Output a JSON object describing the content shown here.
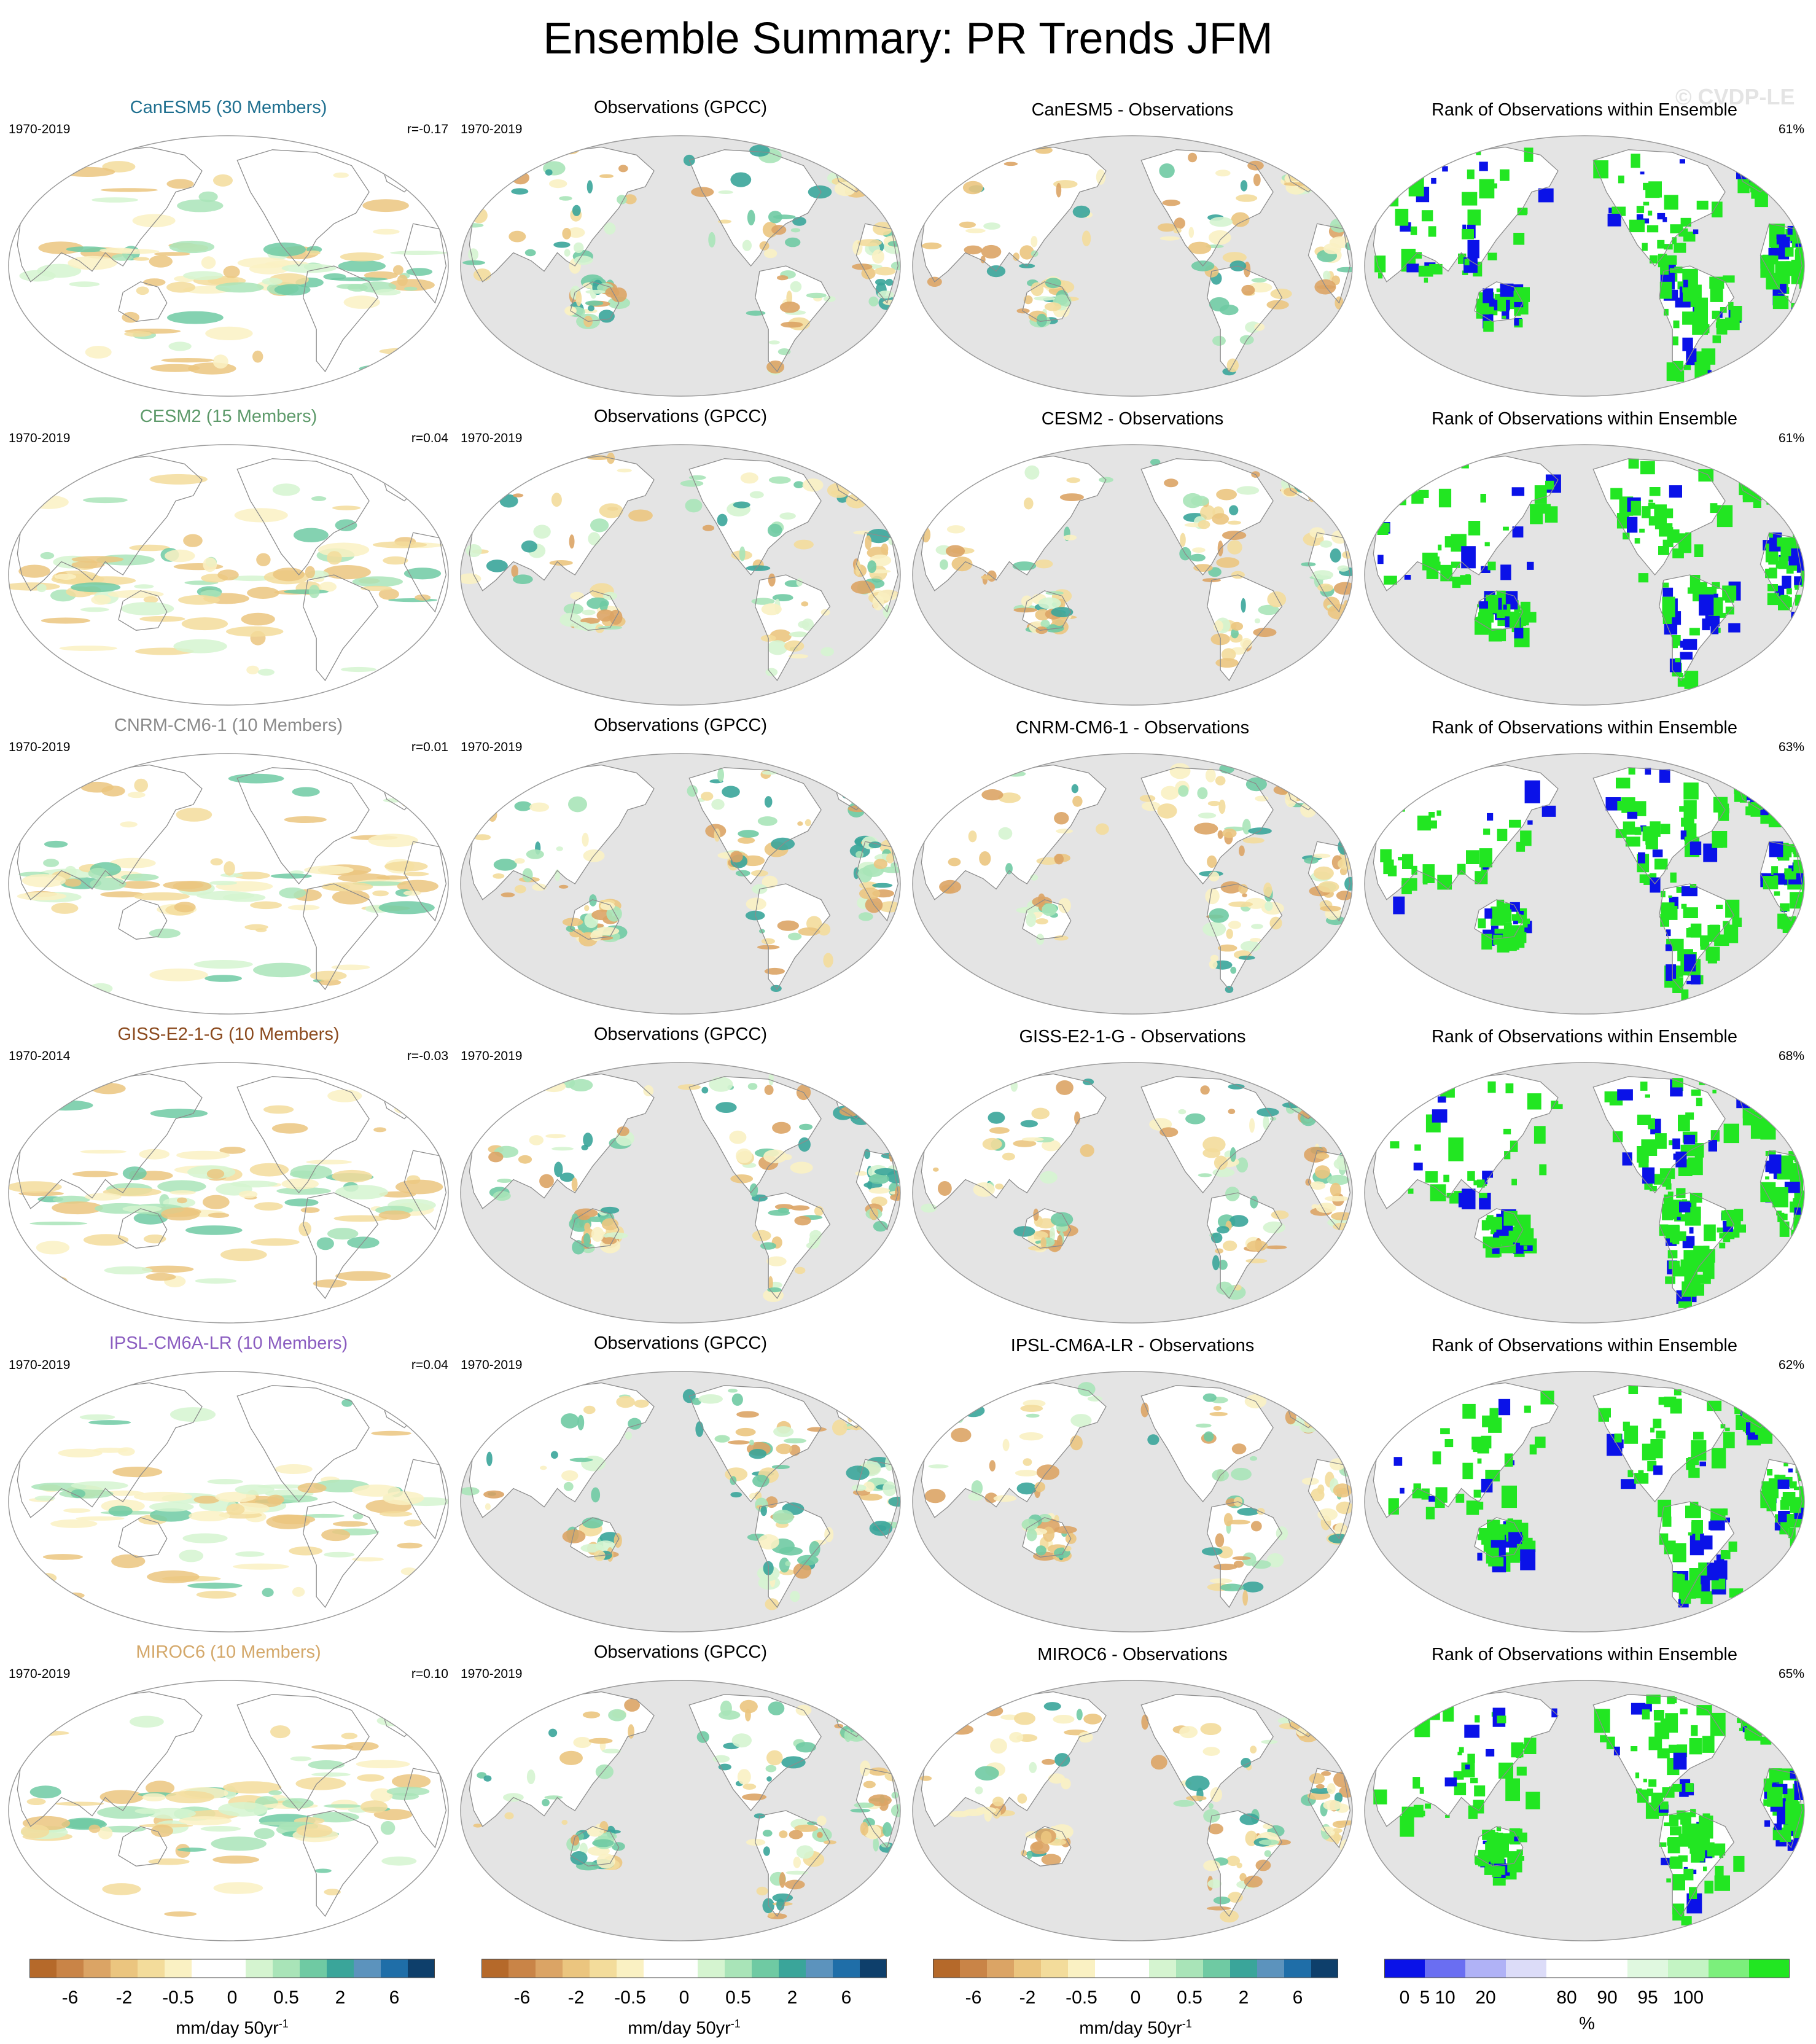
{
  "title": "Ensemble Summary: PR Trends JFM",
  "watermark": "© CVDP-LE",
  "rows": [
    {
      "model_title": "CanESM5 (30 Members)",
      "model_color": "#1e6f8f",
      "model_period": "1970-2019",
      "model_r": "r=-0.17",
      "obs_title": "Observations (GPCC)",
      "obs_period": "1970-2019",
      "diff_title": "CanESM5 - Observations",
      "rank_title": "Rank of Observations within Ensemble",
      "rank_pct": "61%"
    },
    {
      "model_title": "CESM2 (15 Members)",
      "model_color": "#5d9a6a",
      "model_period": "1970-2019",
      "model_r": "r=0.04",
      "obs_title": "Observations (GPCC)",
      "obs_period": "1970-2019",
      "diff_title": "CESM2 - Observations",
      "rank_title": "Rank of Observations within Ensemble",
      "rank_pct": "61%"
    },
    {
      "model_title": "CNRM-CM6-1 (10 Members)",
      "model_color": "#8a8a8a",
      "model_period": "1970-2019",
      "model_r": "r=0.01",
      "obs_title": "Observations (GPCC)",
      "obs_period": "1970-2019",
      "diff_title": "CNRM-CM6-1 - Observations",
      "rank_title": "Rank of Observations within Ensemble",
      "rank_pct": "63%"
    },
    {
      "model_title": "GISS-E2-1-G (10 Members)",
      "model_color": "#8b4a1e",
      "model_period": "1970-2014",
      "model_r": "r=-0.03",
      "obs_title": "Observations (GPCC)",
      "obs_period": "1970-2019",
      "diff_title": "GISS-E2-1-G - Observations",
      "rank_title": "Rank of Observations within Ensemble",
      "rank_pct": "68%"
    },
    {
      "model_title": "IPSL-CM6A-LR (10 Members)",
      "model_color": "#8a5cc0",
      "model_period": "1970-2019",
      "model_r": "r=0.04",
      "obs_title": "Observations (GPCC)",
      "obs_period": "1970-2019",
      "diff_title": "IPSL-CM6A-LR - Observations",
      "rank_title": "Rank of Observations within Ensemble",
      "rank_pct": "62%"
    },
    {
      "model_title": "MIROC6 (10 Members)",
      "model_color": "#d4a86a",
      "model_period": "1970-2019",
      "model_r": "r=0.10",
      "obs_title": "Observations (GPCC)",
      "obs_period": "1970-2019",
      "diff_title": "MIROC6 - Observations",
      "rank_title": "Rank of Observations within Ensemble",
      "rank_pct": "65%"
    }
  ],
  "colorbars": {
    "trend": {
      "colors": [
        "#b5692a",
        "#c98447",
        "#dba465",
        "#ebc57f",
        "#f3dc9b",
        "#faf1c3",
        "#ffffff",
        "#ffffff",
        "#d5f4d0",
        "#a9e4b8",
        "#6fcaa3",
        "#3aa59a",
        "#5c93bd",
        "#1f6ea8",
        "#0e3f6b"
      ],
      "ticks": [
        "-6",
        "-2",
        "-0.5",
        "0",
        "0.5",
        "2",
        "6"
      ],
      "tick_positions": [
        1.5,
        3.5,
        5.5,
        7.5,
        9.5,
        11.5,
        13.5
      ],
      "label": "mm/day 50yr",
      "label_superscript": "-1"
    },
    "rank": {
      "colors": [
        "#0a12e8",
        "#6a6ef2",
        "#b0b2f6",
        "#dcdcf8",
        "#ffffff",
        "#ffffff",
        "#e0f8e0",
        "#c4f4c4",
        "#7cef7c",
        "#22e622"
      ],
      "ticks": [
        "0",
        "5",
        "10",
        "20",
        "80",
        "90",
        "95",
        "100"
      ],
      "tick_positions": [
        0.5,
        1,
        1.5,
        2.5,
        4.5,
        5.5,
        6.5,
        7.5
      ],
      "label": "%"
    }
  }
}
